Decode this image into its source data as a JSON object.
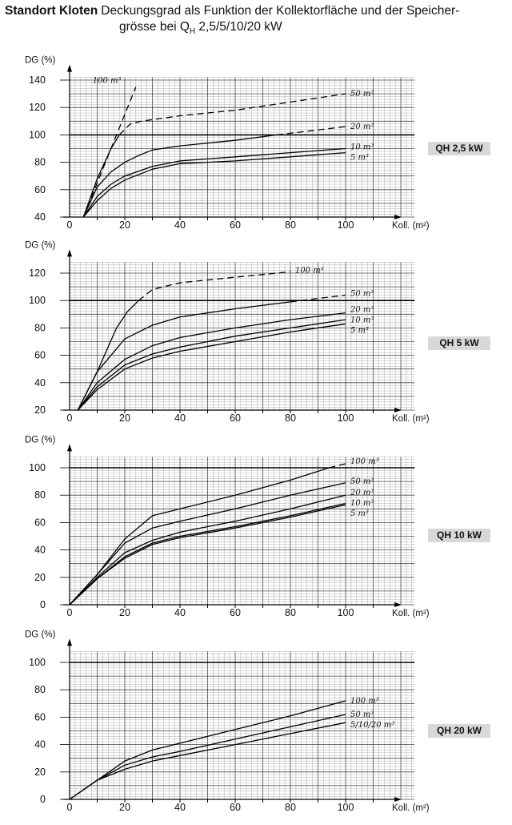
{
  "header": {
    "title_bold": "Standort Kloten",
    "title_line1": "Deckungsgrad als Funktion der Kollektorfläche und der Speicher-",
    "title_line2_pre": "grösse bei Q",
    "title_line2_sub": "H",
    "title_line2_post": " 2,5/5/10/20 kW"
  },
  "chart_data": [
    {
      "type": "line",
      "label": "QH 2,5 kW",
      "ylabel": "DG (%)",
      "xlabel": "Koll. (m²)",
      "xlim": [
        0,
        125
      ],
      "ylim": [
        40,
        142
      ],
      "xticks": [
        "0",
        "20",
        "40",
        "60",
        "80",
        "100"
      ],
      "yticks": [
        "40",
        "60",
        "80",
        "100",
        "120",
        "140"
      ],
      "reference_line": 100,
      "grid": true,
      "series": [
        {
          "name": "100 m³",
          "style": "dashed",
          "x": [
            5,
            10,
            15,
            20,
            24
          ],
          "y": [
            40,
            65,
            90,
            115,
            135
          ]
        },
        {
          "name": "50 m³",
          "style": "solid-then-dashed",
          "dash_from": 18,
          "x": [
            5,
            10,
            15,
            18,
            22,
            26,
            40,
            60,
            80,
            100
          ],
          "y": [
            40,
            68,
            90,
            100,
            108,
            110,
            114,
            118,
            124,
            130
          ]
        },
        {
          "name": "20 m³",
          "style": "solid-then-dashed",
          "dash_from": 75,
          "x": [
            5,
            10,
            15,
            20,
            25,
            30,
            40,
            60,
            75,
            100
          ],
          "y": [
            40,
            62,
            73,
            80,
            85,
            89,
            92,
            96,
            100,
            106
          ]
        },
        {
          "name": "10 m³",
          "style": "solid",
          "x": [
            5,
            10,
            15,
            20,
            30,
            40,
            60,
            80,
            100
          ],
          "y": [
            40,
            55,
            64,
            70,
            77,
            81,
            84,
            87,
            90
          ]
        },
        {
          "name": "5 m³",
          "style": "solid",
          "x": [
            5,
            10,
            15,
            20,
            30,
            40,
            60,
            80,
            100
          ],
          "y": [
            40,
            52,
            61,
            67,
            75,
            79,
            81,
            84,
            87
          ]
        }
      ]
    },
    {
      "type": "line",
      "label": "QH 5 kW",
      "ylabel": "DG (%)",
      "xlabel": "Koll. (m²)",
      "xlim": [
        0,
        125
      ],
      "ylim": [
        20,
        128
      ],
      "xticks": [
        "0",
        "20",
        "40",
        "60",
        "80",
        "100"
      ],
      "yticks": [
        "20",
        "40",
        "60",
        "80",
        "100",
        "120"
      ],
      "reference_line": 100,
      "grid": true,
      "series": [
        {
          "name": "100 m³",
          "style": "solid-then-dashed",
          "dash_from": 25,
          "x": [
            3,
            10,
            17,
            21,
            25,
            30,
            40,
            60,
            80
          ],
          "y": [
            20,
            48,
            80,
            92,
            100,
            108,
            113,
            117,
            121
          ]
        },
        {
          "name": "50 m³",
          "style": "solid-then-dashed",
          "dash_from": 80,
          "x": [
            3,
            10,
            20,
            30,
            40,
            60,
            80,
            100
          ],
          "y": [
            20,
            48,
            72,
            82,
            88,
            94,
            99,
            104
          ]
        },
        {
          "name": "20 m³",
          "style": "solid",
          "x": [
            3,
            10,
            20,
            30,
            40,
            60,
            80,
            100
          ],
          "y": [
            20,
            40,
            57,
            67,
            73,
            80,
            86,
            91
          ]
        },
        {
          "name": "10 m³",
          "style": "solid",
          "x": [
            3,
            10,
            20,
            30,
            40,
            60,
            80,
            100
          ],
          "y": [
            20,
            37,
            53,
            61,
            66,
            74,
            80,
            86
          ]
        },
        {
          "name": "5 m³",
          "style": "solid",
          "x": [
            3,
            10,
            20,
            30,
            40,
            60,
            80,
            100
          ],
          "y": [
            20,
            35,
            50,
            58,
            63,
            70,
            77,
            83
          ]
        }
      ]
    },
    {
      "type": "line",
      "label": "QH 10 kW",
      "ylabel": "DG (%)",
      "xlabel": "Koll. (m²)",
      "xlim": [
        0,
        125
      ],
      "ylim": [
        0,
        108
      ],
      "xticks": [
        "0",
        "20",
        "40",
        "60",
        "80",
        "100"
      ],
      "yticks": [
        "0",
        "20",
        "40",
        "60",
        "80",
        "100"
      ],
      "reference_line": 100,
      "grid": true,
      "series": [
        {
          "name": "100 m³",
          "style": "solid-then-dashed",
          "dash_from": 94,
          "x": [
            0,
            10,
            20,
            30,
            40,
            60,
            80,
            94,
            100
          ],
          "y": [
            0,
            22,
            48,
            65,
            70,
            80,
            91,
            100,
            103
          ]
        },
        {
          "name": "50 m³",
          "style": "solid",
          "x": [
            0,
            10,
            20,
            30,
            40,
            60,
            80,
            100
          ],
          "y": [
            0,
            22,
            45,
            56,
            61,
            70,
            80,
            89
          ]
        },
        {
          "name": "20 m³",
          "style": "solid",
          "x": [
            0,
            10,
            20,
            30,
            40,
            60,
            80,
            100
          ],
          "y": [
            0,
            20,
            38,
            47,
            53,
            61,
            70,
            80
          ]
        },
        {
          "name": "10 m³",
          "style": "solid",
          "x": [
            0,
            10,
            20,
            30,
            40,
            60,
            80,
            100
          ],
          "y": [
            0,
            19,
            35,
            45,
            50,
            57,
            65,
            74
          ]
        },
        {
          "name": "5 m³",
          "style": "solid",
          "x": [
            0,
            10,
            20,
            30,
            40,
            60,
            80,
            100
          ],
          "y": [
            0,
            19,
            34,
            44,
            49,
            56,
            64,
            73
          ]
        }
      ]
    },
    {
      "type": "line",
      "label": "QH 20 kW",
      "ylabel": "DG (%)",
      "xlabel": "Koll. (m²)",
      "xlim": [
        0,
        125
      ],
      "ylim": [
        0,
        108
      ],
      "xticks": [
        "0",
        "20",
        "40",
        "60",
        "80",
        "100"
      ],
      "yticks": [
        "0",
        "20",
        "40",
        "60",
        "80",
        "100"
      ],
      "reference_line": 100,
      "grid": true,
      "series": [
        {
          "name": "100 m³",
          "style": "solid",
          "x": [
            0,
            10,
            20,
            30,
            40,
            60,
            80,
            100
          ],
          "y": [
            0,
            14,
            28,
            36,
            41,
            51,
            61,
            72
          ]
        },
        {
          "name": "50 m³",
          "style": "solid",
          "x": [
            0,
            10,
            20,
            30,
            40,
            60,
            80,
            100
          ],
          "y": [
            0,
            14,
            25,
            31,
            35,
            44,
            53,
            62
          ]
        },
        {
          "name": "5/10/20 m³",
          "style": "solid",
          "x": [
            0,
            10,
            20,
            30,
            40,
            60,
            80,
            100
          ],
          "y": [
            0,
            14,
            22,
            28,
            32,
            40,
            48,
            56
          ]
        }
      ]
    }
  ]
}
